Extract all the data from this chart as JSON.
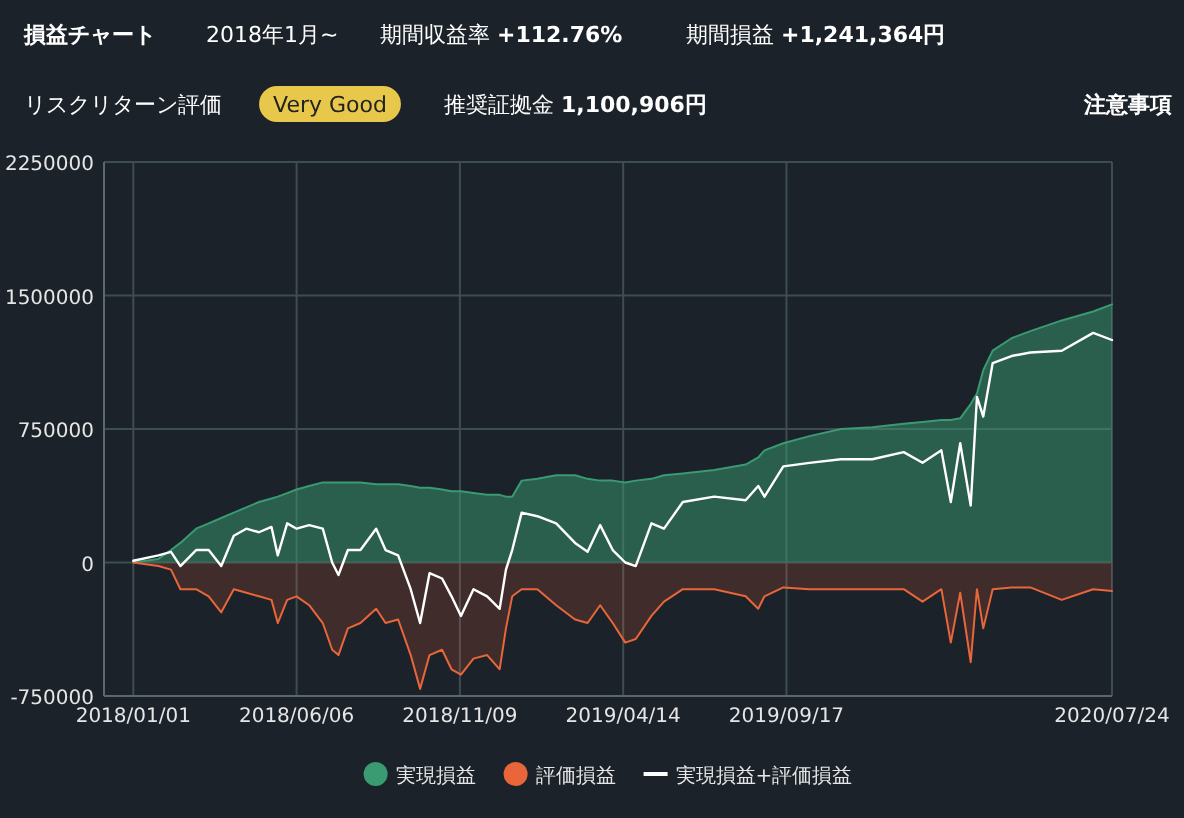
{
  "chart_data": {
    "type": "area",
    "title": "損益チャート",
    "annotations": [
      "2018年1月~",
      "期間収益率 +112.76%",
      "期間損益 +1,241,364円",
      "リスクリターン評価",
      "Very Good",
      "推奨証拠金 1,100,906円",
      "注意事項"
    ],
    "x": [
      "2018-01-01",
      "2018-01-25",
      "2018-02-06",
      "2018-02-15",
      "2018-03-02",
      "2018-03-14",
      "2018-03-26",
      "2018-04-07",
      "2018-04-19",
      "2018-05-01",
      "2018-05-13",
      "2018-05-19",
      "2018-05-28",
      "2018-06-06",
      "2018-06-18",
      "2018-07-01",
      "2018-07-10",
      "2018-07-16",
      "2018-07-25",
      "2018-08-06",
      "2018-08-21",
      "2018-08-30",
      "2018-09-11",
      "2018-09-23",
      "2018-10-02",
      "2018-10-11",
      "2018-10-23",
      "2018-11-01",
      "2018-11-10",
      "2018-11-22",
      "2018-12-05",
      "2018-12-17",
      "2018-12-23",
      "2018-12-29",
      "2019-01-07",
      "2019-01-22",
      "2019-02-09",
      "2019-02-27",
      "2019-03-11",
      "2019-03-23",
      "2019-04-04",
      "2019-04-16",
      "2019-04-26",
      "2019-05-11",
      "2019-05-23",
      "2019-06-10",
      "2019-07-10",
      "2019-08-09",
      "2019-08-21",
      "2019-08-27",
      "2019-09-14",
      "2019-10-09",
      "2019-11-08",
      "2019-12-08",
      "2020-01-07",
      "2020-01-25",
      "2020-02-12",
      "2020-02-21",
      "2020-03-01",
      "2020-03-11",
      "2020-03-17",
      "2020-03-23",
      "2020-04-01",
      "2020-04-19",
      "2020-05-07",
      "2020-06-06",
      "2020-07-06",
      "2020-07-24"
    ],
    "series": [
      {
        "name": "実現損益",
        "color": "#3a9a72",
        "values": [
          0,
          20000,
          70000,
          110000,
          190000,
          220000,
          250000,
          280000,
          310000,
          340000,
          360000,
          370000,
          390000,
          410000,
          430000,
          450000,
          450000,
          450000,
          450000,
          450000,
          440000,
          440000,
          440000,
          430000,
          420000,
          420000,
          410000,
          400000,
          400000,
          390000,
          380000,
          380000,
          370000,
          370000,
          460000,
          470000,
          490000,
          490000,
          470000,
          460000,
          460000,
          450000,
          460000,
          470000,
          490000,
          500000,
          520000,
          550000,
          590000,
          630000,
          670000,
          710000,
          750000,
          760000,
          780000,
          790000,
          800000,
          800000,
          810000,
          890000,
          950000,
          1080000,
          1190000,
          1260000,
          1300000,
          1360000,
          1410000,
          1450000
        ]
      },
      {
        "name": "評価損益",
        "color": "#e8663a",
        "values": [
          0,
          -20000,
          -40000,
          -150000,
          -150000,
          -190000,
          -280000,
          -150000,
          -170000,
          -190000,
          -210000,
          -340000,
          -210000,
          -190000,
          -240000,
          -340000,
          -490000,
          -520000,
          -370000,
          -340000,
          -260000,
          -340000,
          -320000,
          -520000,
          -710000,
          -520000,
          -490000,
          -600000,
          -630000,
          -540000,
          -520000,
          -600000,
          -370000,
          -190000,
          -150000,
          -150000,
          -240000,
          -320000,
          -340000,
          -240000,
          -340000,
          -450000,
          -430000,
          -300000,
          -220000,
          -150000,
          -150000,
          -190000,
          -260000,
          -190000,
          -140000,
          -150000,
          -150000,
          -150000,
          -150000,
          -220000,
          -150000,
          -450000,
          -170000,
          -560000,
          -150000,
          -370000,
          -150000,
          -140000,
          -140000,
          -210000,
          -150000,
          -160000
        ]
      },
      {
        "name": "実現損益+評価損益",
        "type": "line",
        "color": "#ffffff",
        "values": [
          10000,
          40000,
          60000,
          -20000,
          70000,
          70000,
          -20000,
          150000,
          190000,
          170000,
          200000,
          40000,
          220000,
          190000,
          210000,
          190000,
          0,
          -70000,
          70000,
          70000,
          190000,
          70000,
          40000,
          -150000,
          -340000,
          -60000,
          -90000,
          -190000,
          -300000,
          -150000,
          -190000,
          -260000,
          -40000,
          70000,
          280000,
          260000,
          220000,
          110000,
          60000,
          210000,
          70000,
          0,
          -20000,
          220000,
          190000,
          340000,
          370000,
          350000,
          430000,
          370000,
          540000,
          560000,
          580000,
          580000,
          620000,
          560000,
          630000,
          340000,
          670000,
          320000,
          930000,
          820000,
          1120000,
          1160000,
          1180000,
          1190000,
          1290000,
          1250000
        ]
      }
    ],
    "xlim": [
      "2017-12-04",
      "2020-07-24"
    ],
    "xticks": [
      {
        "value": "2018-01-01",
        "label": "2018/01/01"
      },
      {
        "value": "2018-06-06",
        "label": "2018/06/06"
      },
      {
        "value": "2018-11-09",
        "label": "2018/11/09"
      },
      {
        "value": "2019-04-14",
        "label": "2019/04/14"
      },
      {
        "value": "2019-09-17",
        "label": "2019/09/17"
      },
      {
        "value": "2020-07-24",
        "label": "2020/07/24"
      }
    ],
    "ylim": [
      -750000,
      2250000
    ],
    "yticks": [
      -750000,
      0,
      750000,
      1500000,
      2250000
    ],
    "grid": true,
    "legend": "bottom"
  }
}
